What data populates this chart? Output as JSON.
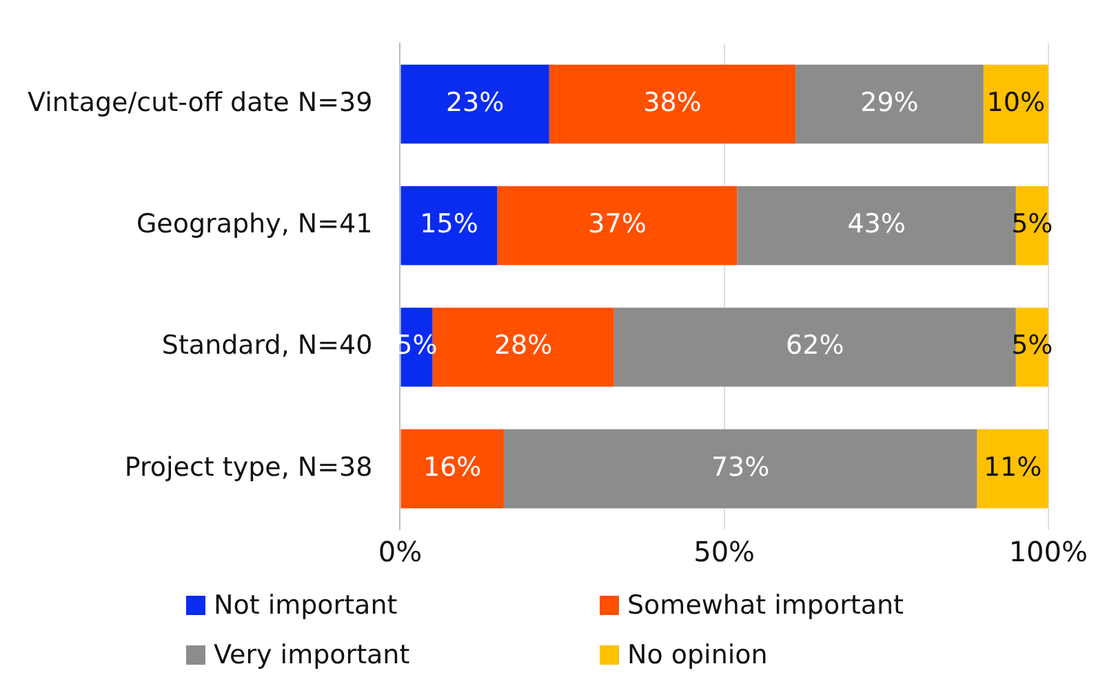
{
  "chart_data": {
    "type": "bar",
    "orientation": "horizontal",
    "stacked": true,
    "categories": [
      "Vintage/cut-off date N=39",
      "Geography, N=41",
      "Standard, N=40",
      "Project type, N=38"
    ],
    "series": [
      {
        "name": "Not important",
        "color": "#0a2cf0",
        "values": [
          23,
          15,
          5,
          0
        ],
        "value_labels": [
          "23%",
          "15%",
          "5%",
          null
        ]
      },
      {
        "name": "Somewhat important",
        "color": "#ff5000",
        "values": [
          38,
          37,
          28,
          16
        ],
        "value_labels": [
          "38%",
          "37%",
          "28%",
          "16%"
        ]
      },
      {
        "name": "Very important",
        "color": "#8c8c8c",
        "values": [
          29,
          43,
          62,
          73
        ],
        "value_labels": [
          "29%",
          "43%",
          "62%",
          "73%"
        ]
      },
      {
        "name": "No opinion",
        "color": "#ffc000",
        "values": [
          10,
          5,
          5,
          11
        ],
        "value_labels": [
          "10%",
          "5%",
          "5%",
          "11%"
        ]
      }
    ],
    "xlim": [
      0,
      100
    ],
    "xticks": [
      {
        "value": 0,
        "label": "0%"
      },
      {
        "value": 50,
        "label": "50%"
      },
      {
        "value": 100,
        "label": "100%"
      }
    ],
    "grid": "x",
    "legend": "bottom"
  }
}
